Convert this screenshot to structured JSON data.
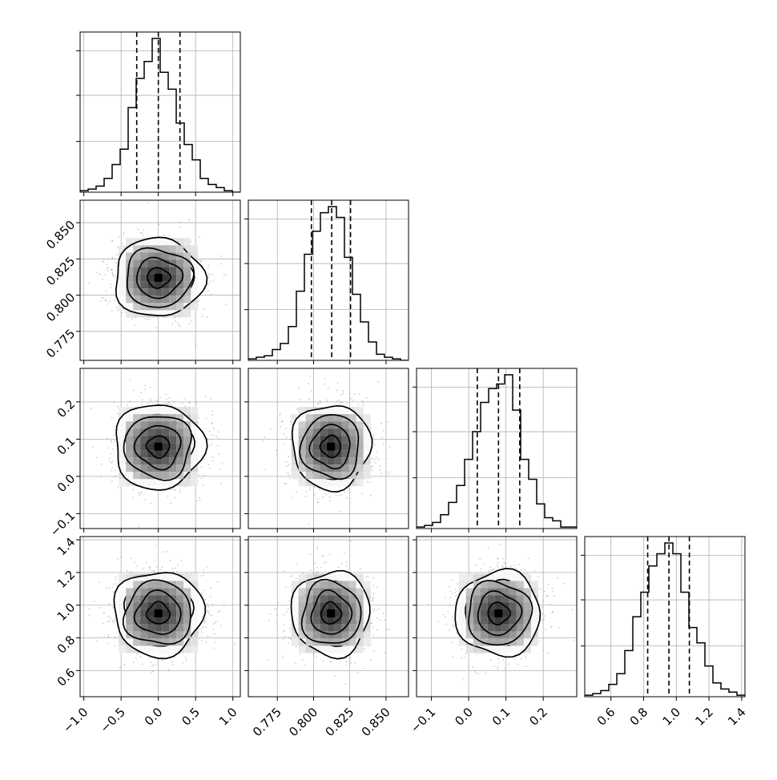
{
  "chart_data": {
    "type": "corner",
    "description_parameters": 4,
    "grid": true,
    "parameters": [
      {
        "range": [
          -1.05,
          1.1
        ],
        "mean": 0.0,
        "sigma": 0.3,
        "quantiles": [
          -0.29,
          0.0,
          0.29
        ],
        "ticks": [
          -1.0,
          -0.5,
          0.0,
          0.5,
          1.0
        ],
        "tick_labels": [
          "−1.0",
          "−0.5",
          "0.0",
          "0.5",
          "1.0"
        ],
        "hist": [
          0.01,
          0.02,
          0.04,
          0.09,
          0.18,
          0.28,
          0.55,
          0.74,
          0.85,
          1.0,
          0.78,
          0.67,
          0.45,
          0.31,
          0.21,
          0.09,
          0.05,
          0.03,
          0.01,
          0.0
        ]
      },
      {
        "range": [
          0.755,
          0.8655
        ],
        "mean": 0.812,
        "sigma": 0.0135,
        "quantiles": [
          0.7985,
          0.8125,
          0.8255
        ],
        "ticks": [
          0.775,
          0.8,
          0.825,
          0.85
        ],
        "tick_labels": [
          "0.775",
          "0.800",
          "0.825",
          "0.850"
        ],
        "hist": [
          0.01,
          0.02,
          0.03,
          0.07,
          0.11,
          0.22,
          0.45,
          0.69,
          0.84,
          0.96,
          1.0,
          0.93,
          0.67,
          0.43,
          0.25,
          0.12,
          0.04,
          0.02,
          0.01,
          0.0
        ]
      },
      {
        "range": [
          -0.14,
          0.29
        ],
        "mean": 0.08,
        "sigma": 0.057,
        "quantiles": [
          0.023,
          0.08,
          0.137
        ],
        "ticks": [
          -0.1,
          0.0,
          0.1,
          0.2
        ],
        "tick_labels": [
          "−0.1",
          "0.0",
          "0.1",
          "0.2"
        ],
        "hist": [
          0.01,
          0.02,
          0.04,
          0.09,
          0.17,
          0.28,
          0.45,
          0.63,
          0.82,
          0.91,
          0.94,
          1.0,
          0.77,
          0.45,
          0.32,
          0.16,
          0.07,
          0.05,
          0.01,
          0.01
        ]
      },
      {
        "range": [
          0.44,
          1.42
        ],
        "mean": 0.95,
        "sigma": 0.13,
        "quantiles": [
          0.825,
          0.955,
          1.08
        ],
        "ticks": [
          0.6,
          0.8,
          1.0,
          1.2,
          1.4
        ],
        "tick_labels": [
          "0.6",
          "0.8",
          "1.0",
          "1.2",
          "1.4"
        ],
        "hist": [
          0.01,
          0.02,
          0.04,
          0.08,
          0.15,
          0.3,
          0.52,
          0.68,
          0.85,
          0.93,
          1.0,
          0.93,
          0.68,
          0.45,
          0.35,
          0.2,
          0.09,
          0.05,
          0.03,
          0.01
        ]
      }
    ],
    "y_axis_labels": {
      "row2": {
        "ticks": [
          0.775,
          0.8,
          0.825,
          0.85
        ],
        "tick_labels": [
          "0.775",
          "0.800",
          "0.825",
          "0.850"
        ]
      },
      "row3": {
        "ticks": [
          -0.1,
          0.0,
          0.1,
          0.2
        ],
        "tick_labels": [
          "−0.1",
          "0.0",
          "0.1",
          "0.2"
        ]
      },
      "row4": {
        "ticks": [
          0.6,
          0.8,
          1.0,
          1.2,
          1.4
        ],
        "tick_labels": [
          "0.6",
          "0.8",
          "1.0",
          "1.2",
          "1.4"
        ]
      }
    },
    "contour_levels_sigma": [
      0.5,
      1.0,
      1.5,
      2.0
    ],
    "colors": {
      "axes": "#000000",
      "grid": "#b0b0b0",
      "points": "#808080"
    }
  }
}
